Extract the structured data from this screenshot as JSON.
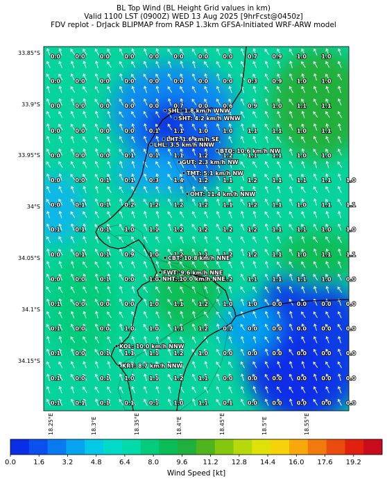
{
  "title": {
    "line1": "BL Top Wind (BL Height Grid values in km)",
    "line2": "Valid 1100 LST (0900Z) WED 13 Aug 2025 [9hrFcst@0450z]",
    "line3": "FDV replot - DrJack BLIPMAP from RASP 1.3km GFSA-Initiated WRF-ARW model"
  },
  "axes": {
    "lat_labels": [
      "33.85°S",
      "33.9°S",
      "33.95°S",
      "34°S",
      "34.05°S",
      "34.1°S",
      "34.15°S"
    ],
    "lon_labels": [
      "18.25°E",
      "18.3°E",
      "18.35°E",
      "18.4°E",
      "18.45°E",
      "18.5°E",
      "18.55°E"
    ]
  },
  "grid_values": [
    [
      "0.0",
      "0.0",
      "0.0",
      "0.0",
      "0.0",
      "0.0",
      "0.0",
      "0.0",
      "0.7",
      "0.9",
      "1.0",
      "1.0",
      ""
    ],
    [
      "0.0",
      "0.0",
      "0.0",
      "0.0",
      "0.0",
      "0.0",
      "0.0",
      "0.0",
      "0.3",
      "0.9",
      "1.0",
      "1.0",
      ""
    ],
    [
      "0.0",
      "0.0",
      "0.0",
      "0.0",
      "0.0",
      "0.7",
      "0.0",
      "0.6",
      "0.9",
      "1.0",
      "1.1",
      "1.1",
      ""
    ],
    [
      "0.0",
      "0.0",
      "0.0",
      "0.0",
      "0.1",
      "1.1",
      "1.0",
      "1.0",
      "1.1",
      "1.1",
      "1.0",
      "1.1",
      ""
    ],
    [
      "0.0",
      "0.0",
      "0.0",
      "0.1",
      "0.1",
      "1.1",
      "1.2",
      "1.2",
      "1.1",
      "1.1",
      "1.0",
      "1.0",
      ""
    ],
    [
      "0.0",
      "0.0",
      "0.1",
      "0.1",
      "0.3",
      "1.4",
      "1.2",
      "1.1",
      "1.2",
      "1.1",
      "1.1",
      "1.1",
      "1.0"
    ],
    [
      "0.0",
      "0.1",
      "0.1",
      "0.2",
      "1.2",
      "1.2",
      "1.2",
      "1.1",
      "1.2",
      "1.1",
      "1.0",
      "1.1",
      "1.1"
    ],
    [
      "0.1",
      "0.1",
      "0.1",
      "1.0",
      "1.1",
      "1.2",
      "1.2",
      "1.2",
      "1.2",
      "1.1",
      "1.1",
      "1.0",
      "1.0"
    ],
    [
      "0.0",
      "0.1",
      "0.1",
      "0.9",
      "1.0",
      "1.2",
      "1.1",
      "1.2",
      "1.2",
      "1.1",
      "1.0",
      "1.1",
      "1.1"
    ],
    [
      "0.0",
      "0.0",
      "0.1",
      "0.0",
      "1.0",
      "1.2",
      "1.2",
      "1.2",
      "1.1",
      "1.1",
      "1.1",
      "1.0",
      "0.0"
    ],
    [
      "0.1",
      "0.0",
      "0.0",
      "0.0",
      "1.0",
      "1.1",
      "1.2",
      "1.0",
      "1.0",
      "0.0",
      "0.0",
      "0.0",
      "0.0"
    ],
    [
      "0.1",
      "0.0",
      "0.0",
      "1.0",
      "1.0",
      "1.1",
      "1.2",
      "0.7",
      "0.0",
      "0.0",
      "0.0",
      "0.0",
      "0.0"
    ],
    [
      "0.1",
      "0.0",
      "0.1",
      "1.1",
      "1.1",
      "1.2",
      "1.0",
      "0.0",
      "0.0",
      "0.0",
      "0.0",
      "0.0",
      "0.0"
    ],
    [
      "0.1",
      "0.0",
      "0.1",
      "1.0",
      "1.1",
      "1.2",
      "1.1",
      "0.0",
      "0.0",
      "0.0",
      "0.0",
      "0.0",
      "0.0"
    ],
    [
      "0.1",
      "0.1",
      "0.1",
      "0.1",
      "0.1",
      "1.0",
      "1.1",
      "0.1",
      "0.0",
      "0.0",
      "0.0",
      "0.0",
      "0.0"
    ]
  ],
  "places": [
    {
      "label": "SHL: 1.8 km/h WNW"
    },
    {
      "label": "SHT: 4.2 km/h WNW"
    },
    {
      "label": "LHT: 1.6 km/h SE"
    },
    {
      "label": "LHL: 3.5 km/h NNW"
    },
    {
      "label": "BTO: 10.6 km/h NW"
    },
    {
      "label": "GUT: 2.3 km/h NW"
    },
    {
      "label": "TMT: 5.1 km/h NW"
    },
    {
      "label": "OHT: 11.4 km/h NNW"
    },
    {
      "label": "CBT: 10.8 km/h NNE"
    },
    {
      "label": "FWT: 9.6 km/h NNE"
    },
    {
      "label": "NHT: 10.0 km/h NNE"
    },
    {
      "label": "KOL: 10.0 km/h NNW"
    },
    {
      "label": "KRT: 8.7 km/h NNW"
    }
  ],
  "colorbar": {
    "label": "Wind Speed [kt]",
    "ticks": [
      "0.0",
      "1.6",
      "3.2",
      "4.8",
      "6.4",
      "8.0",
      "9.6",
      "11.2",
      "12.8",
      "14.4",
      "16.0",
      "17.6",
      "19.2"
    ],
    "colors": [
      "#0a2ee6",
      "#0b50ee",
      "#0a7af0",
      "#06a4ee",
      "#04c8e6",
      "#03d9c8",
      "#04d9a8",
      "#05cc7c",
      "#0bbd56",
      "#22b03c",
      "#4fb41e",
      "#85c70e",
      "#b7d80a",
      "#dfe10a",
      "#f5d20a",
      "#f7a80b",
      "#f27a0d",
      "#ea4b0f",
      "#e0210f",
      "#c80c1c"
    ]
  }
}
